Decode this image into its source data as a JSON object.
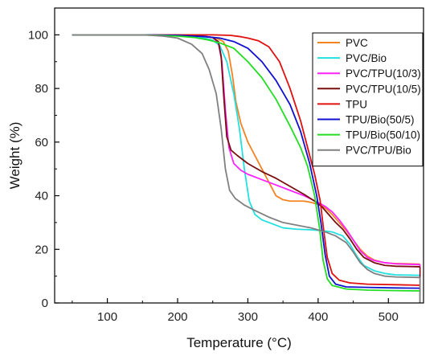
{
  "chart_data": {
    "type": "line",
    "xlabel": "Temperature (°C)",
    "ylabel": "Weight (%)",
    "xlim": [
      25,
      550
    ],
    "ylim": [
      0,
      110
    ],
    "xticks": [
      100,
      200,
      300,
      400,
      500
    ],
    "yticks": [
      0,
      20,
      40,
      60,
      80,
      100
    ],
    "grid": false,
    "legend_position": "top-right",
    "series": [
      {
        "name": "PVC",
        "color": "#f58220",
        "points": [
          [
            50,
            100
          ],
          [
            150,
            100
          ],
          [
            200,
            99.8
          ],
          [
            240,
            99.3
          ],
          [
            255,
            98.8
          ],
          [
            265,
            97.5
          ],
          [
            272,
            94
          ],
          [
            278,
            85
          ],
          [
            283,
            75
          ],
          [
            290,
            67
          ],
          [
            300,
            60
          ],
          [
            310,
            55
          ],
          [
            320,
            50
          ],
          [
            330,
            45
          ],
          [
            340,
            40
          ],
          [
            350,
            38.5
          ],
          [
            360,
            38
          ],
          [
            380,
            38
          ],
          [
            390,
            37.5
          ],
          [
            400,
            36.8
          ],
          [
            410,
            35.5
          ],
          [
            420,
            33
          ],
          [
            430,
            30
          ],
          [
            440,
            27
          ],
          [
            450,
            23.5
          ],
          [
            460,
            20
          ],
          [
            470,
            17.5
          ],
          [
            480,
            16
          ],
          [
            495,
            15
          ],
          [
            510,
            14.7
          ],
          [
            545,
            14.5
          ]
        ]
      },
      {
        "name": "PVC/Bio",
        "color": "#22e0e0",
        "points": [
          [
            50,
            100
          ],
          [
            150,
            100
          ],
          [
            200,
            99.8
          ],
          [
            230,
            99.3
          ],
          [
            250,
            98
          ],
          [
            260,
            96
          ],
          [
            270,
            90
          ],
          [
            280,
            78
          ],
          [
            288,
            65
          ],
          [
            295,
            50
          ],
          [
            302,
            38
          ],
          [
            310,
            33
          ],
          [
            320,
            31
          ],
          [
            335,
            29.5
          ],
          [
            350,
            28
          ],
          [
            370,
            27.5
          ],
          [
            390,
            27.3
          ],
          [
            405,
            27
          ],
          [
            420,
            26.5
          ],
          [
            435,
            25
          ],
          [
            445,
            22
          ],
          [
            455,
            17.5
          ],
          [
            465,
            14
          ],
          [
            480,
            12
          ],
          [
            495,
            11
          ],
          [
            510,
            10.5
          ],
          [
            545,
            10.3
          ]
        ]
      },
      {
        "name": "PVC/TPU(10/3)",
        "color": "#ff22ff",
        "points": [
          [
            50,
            100
          ],
          [
            150,
            100
          ],
          [
            200,
            99.8
          ],
          [
            235,
            99.6
          ],
          [
            250,
            99
          ],
          [
            258,
            97
          ],
          [
            263,
            90
          ],
          [
            268,
            72
          ],
          [
            273,
            58
          ],
          [
            280,
            52
          ],
          [
            290,
            49.5
          ],
          [
            300,
            48
          ],
          [
            320,
            46
          ],
          [
            340,
            44
          ],
          [
            360,
            42
          ],
          [
            380,
            40
          ],
          [
            400,
            37.5
          ],
          [
            410,
            36
          ],
          [
            420,
            34
          ],
          [
            430,
            31
          ],
          [
            440,
            27.5
          ],
          [
            450,
            23.5
          ],
          [
            460,
            19.5
          ],
          [
            470,
            17
          ],
          [
            480,
            15.8
          ],
          [
            495,
            15
          ],
          [
            510,
            14.6
          ],
          [
            545,
            14.3
          ]
        ]
      },
      {
        "name": "PVC/TPU(10/5)",
        "color": "#7a0e0e",
        "points": [
          [
            50,
            100
          ],
          [
            150,
            100
          ],
          [
            200,
            99.8
          ],
          [
            235,
            99.5
          ],
          [
            250,
            99
          ],
          [
            258,
            97.5
          ],
          [
            262,
            92
          ],
          [
            266,
            76
          ],
          [
            270,
            62
          ],
          [
            276,
            57
          ],
          [
            285,
            55
          ],
          [
            300,
            52
          ],
          [
            320,
            49
          ],
          [
            340,
            46.5
          ],
          [
            360,
            43.5
          ],
          [
            380,
            40.5
          ],
          [
            395,
            38
          ],
          [
            405,
            36
          ],
          [
            415,
            33
          ],
          [
            425,
            30
          ],
          [
            435,
            27.5
          ],
          [
            445,
            24
          ],
          [
            455,
            20
          ],
          [
            465,
            17
          ],
          [
            480,
            15
          ],
          [
            495,
            14
          ],
          [
            510,
            13.7
          ],
          [
            545,
            13.5
          ]
        ]
      },
      {
        "name": "TPU",
        "color": "#e01010",
        "points": [
          [
            50,
            100
          ],
          [
            150,
            100
          ],
          [
            200,
            100
          ],
          [
            250,
            100
          ],
          [
            275,
            99.8
          ],
          [
            290,
            99.3
          ],
          [
            300,
            98.8
          ],
          [
            315,
            97.8
          ],
          [
            330,
            95.5
          ],
          [
            345,
            90
          ],
          [
            360,
            80
          ],
          [
            375,
            68
          ],
          [
            385,
            58
          ],
          [
            395,
            48
          ],
          [
            403,
            38
          ],
          [
            408,
            27
          ],
          [
            413,
            17
          ],
          [
            420,
            11
          ],
          [
            430,
            8.5
          ],
          [
            445,
            7.5
          ],
          [
            470,
            7
          ],
          [
            510,
            6.8
          ],
          [
            545,
            6.6
          ]
        ]
      },
      {
        "name": "TPU/Bio(50/5)",
        "color": "#1010d0",
        "points": [
          [
            50,
            100
          ],
          [
            150,
            100
          ],
          [
            200,
            99.8
          ],
          [
            240,
            99.3
          ],
          [
            260,
            98.8
          ],
          [
            280,
            97.5
          ],
          [
            300,
            95
          ],
          [
            320,
            90
          ],
          [
            340,
            83
          ],
          [
            360,
            74
          ],
          [
            375,
            64
          ],
          [
            388,
            52
          ],
          [
            398,
            40
          ],
          [
            404,
            30
          ],
          [
            410,
            18
          ],
          [
            416,
            10
          ],
          [
            425,
            7
          ],
          [
            440,
            6
          ],
          [
            470,
            5.8
          ],
          [
            510,
            5.6
          ],
          [
            545,
            5.5
          ]
        ]
      },
      {
        "name": "TPU/Bio(50/10)",
        "color": "#22dd22",
        "points": [
          [
            50,
            100
          ],
          [
            150,
            100
          ],
          [
            200,
            99.5
          ],
          [
            225,
            99
          ],
          [
            245,
            98
          ],
          [
            260,
            97
          ],
          [
            280,
            95
          ],
          [
            300,
            90
          ],
          [
            320,
            84
          ],
          [
            340,
            76
          ],
          [
            360,
            66
          ],
          [
            375,
            58
          ],
          [
            385,
            51
          ],
          [
            395,
            40
          ],
          [
            402,
            28
          ],
          [
            407,
            16
          ],
          [
            413,
            9
          ],
          [
            420,
            6.5
          ],
          [
            440,
            5.2
          ],
          [
            470,
            4.8
          ],
          [
            510,
            4.6
          ],
          [
            545,
            4.5
          ]
        ]
      },
      {
        "name": "PVC/TPU/Bio",
        "color": "#808080",
        "points": [
          [
            50,
            100
          ],
          [
            150,
            100
          ],
          [
            180,
            99.5
          ],
          [
            200,
            98.8
          ],
          [
            220,
            96.5
          ],
          [
            235,
            93
          ],
          [
            245,
            87
          ],
          [
            255,
            78
          ],
          [
            262,
            65
          ],
          [
            268,
            50
          ],
          [
            274,
            42
          ],
          [
            282,
            39
          ],
          [
            295,
            36.5
          ],
          [
            310,
            34.5
          ],
          [
            330,
            32
          ],
          [
            350,
            30
          ],
          [
            370,
            29
          ],
          [
            390,
            28
          ],
          [
            410,
            26.5
          ],
          [
            425,
            25
          ],
          [
            440,
            22.5
          ],
          [
            450,
            19
          ],
          [
            460,
            15
          ],
          [
            470,
            12.5
          ],
          [
            480,
            11
          ],
          [
            495,
            10
          ],
          [
            510,
            9.7
          ],
          [
            545,
            9.5
          ]
        ]
      }
    ]
  }
}
